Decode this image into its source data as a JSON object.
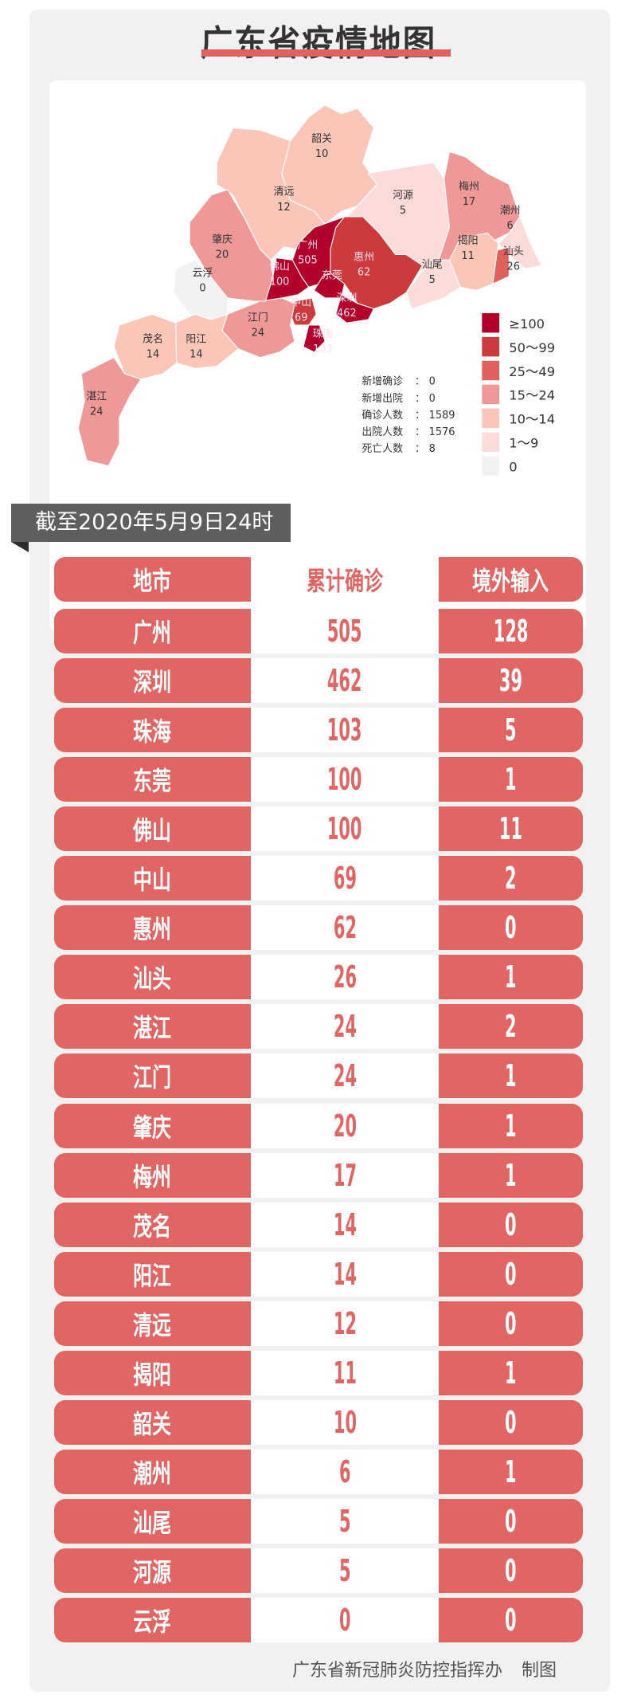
{
  "title": "广东省疫情地图",
  "map": {
    "regions": [
      {
        "name": "韶关",
        "value": 10
      },
      {
        "name": "清远",
        "value": 12
      },
      {
        "name": "河源",
        "value": 5
      },
      {
        "name": "梅州",
        "value": 17
      },
      {
        "name": "潮州",
        "value": 6
      },
      {
        "name": "汕头",
        "value": 26
      },
      {
        "name": "揭阳",
        "value": 11
      },
      {
        "name": "汕尾",
        "value": 5
      },
      {
        "name": "惠州",
        "value": 62
      },
      {
        "name": "广州",
        "value": 505
      },
      {
        "name": "佛山",
        "value": 100
      },
      {
        "name": "东莞",
        "value": 100
      },
      {
        "name": "深圳",
        "value": 462
      },
      {
        "name": "中山",
        "value": 69
      },
      {
        "name": "珠海",
        "value": 103
      },
      {
        "name": "江门",
        "value": 24
      },
      {
        "name": "肇庆",
        "value": 20
      },
      {
        "name": "云浮",
        "value": 0
      },
      {
        "name": "阳江",
        "value": 14
      },
      {
        "name": "茂名",
        "value": 14
      },
      {
        "name": "湛江",
        "value": 24
      }
    ],
    "stats": [
      {
        "label": "新增确诊",
        "value": "0"
      },
      {
        "label": "新增出院",
        "value": "0"
      },
      {
        "label": "确诊人数",
        "value": "1589"
      },
      {
        "label": "出院人数",
        "value": "1576"
      },
      {
        "label": "死亡人数",
        "value": "8"
      }
    ],
    "legend": [
      {
        "label": "≥100",
        "color": "#b3002a"
      },
      {
        "label": "50～99",
        "color": "#cc3a3b"
      },
      {
        "label": "25～49",
        "color": "#e0605e"
      },
      {
        "label": "15～24",
        "color": "#ee9898"
      },
      {
        "label": "10～14",
        "color": "#f9c6b8"
      },
      {
        "label": "1～9",
        "color": "#fcdcda"
      },
      {
        "label": "0",
        "color": "#f2f2f2"
      }
    ]
  },
  "date_banner": "截至2020年5月9日24时",
  "table": {
    "headers": [
      "地市",
      "累计确诊",
      "境外输入"
    ],
    "rows": [
      [
        "广州",
        "505",
        "128"
      ],
      [
        "深圳",
        "462",
        "39"
      ],
      [
        "珠海",
        "103",
        "5"
      ],
      [
        "东莞",
        "100",
        "1"
      ],
      [
        "佛山",
        "100",
        "11"
      ],
      [
        "中山",
        "69",
        "2"
      ],
      [
        "惠州",
        "62",
        "0"
      ],
      [
        "汕头",
        "26",
        "1"
      ],
      [
        "湛江",
        "24",
        "2"
      ],
      [
        "江门",
        "24",
        "1"
      ],
      [
        "肇庆",
        "20",
        "1"
      ],
      [
        "梅州",
        "17",
        "1"
      ],
      [
        "茂名",
        "14",
        "0"
      ],
      [
        "阳江",
        "14",
        "0"
      ],
      [
        "清远",
        "12",
        "0"
      ],
      [
        "揭阳",
        "11",
        "1"
      ],
      [
        "韶关",
        "10",
        "0"
      ],
      [
        "潮州",
        "6",
        "1"
      ],
      [
        "汕尾",
        "5",
        "0"
      ],
      [
        "河源",
        "5",
        "0"
      ],
      [
        "云浮",
        "0",
        "0"
      ]
    ]
  },
  "footer": {
    "org": "广东省新冠肺炎防控指挥办",
    "suffix": "制图"
  },
  "colors": {
    "accent": "#e06563",
    "banner": "#5e5d60"
  }
}
